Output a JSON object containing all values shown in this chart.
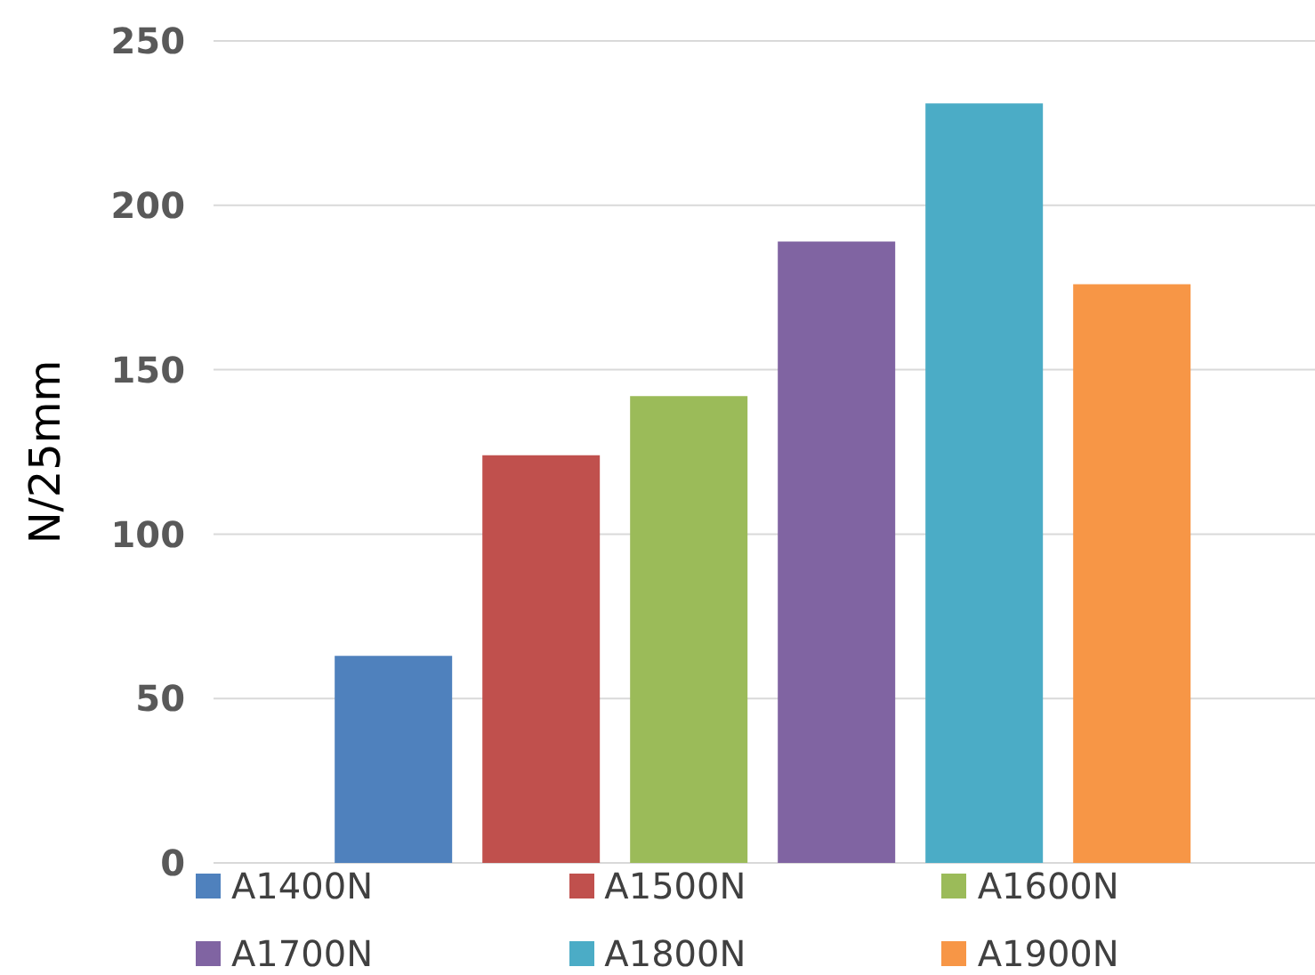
{
  "chart_data": {
    "type": "bar",
    "ylabel": "N/25mm",
    "categories": [
      null
    ],
    "series": [
      {
        "name": "A1400N",
        "color": "#4f81bd",
        "values": [
          63
        ]
      },
      {
        "name": "A1500N",
        "color": "#c0504d",
        "values": [
          124
        ]
      },
      {
        "name": "A1600N",
        "color": "#9bbb59",
        "values": [
          142
        ]
      },
      {
        "name": "A1700N",
        "color": "#8064a2",
        "values": [
          189
        ]
      },
      {
        "name": "A1800N",
        "color": "#4bacc6",
        "values": [
          231
        ]
      },
      {
        "name": "A1900N",
        "color": "#f79646",
        "values": [
          176
        ]
      }
    ],
    "ylim": [
      0,
      250
    ],
    "yticks": [
      0,
      50,
      100,
      150,
      200,
      250
    ],
    "grid": "y",
    "legend": "bottom"
  }
}
